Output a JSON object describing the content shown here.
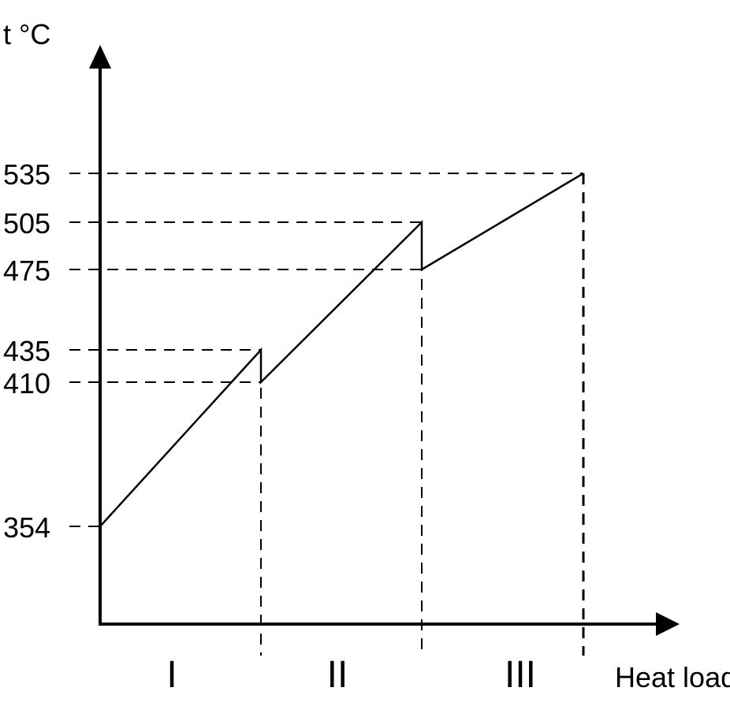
{
  "chart_data": {
    "type": "line",
    "ylabel": "t °C",
    "xlabel": "Heat load",
    "grid": false,
    "y_ticks": [
      535,
      505,
      475,
      435,
      410,
      354
    ],
    "regions": [
      "I",
      "II",
      "III"
    ],
    "series": [
      {
        "points": [
          {
            "region_boundary": 0,
            "t": 354
          },
          {
            "region_boundary": 1,
            "t": 435
          },
          {
            "region_boundary": 1,
            "t": 410
          },
          {
            "region_boundary": 2,
            "t": 505
          },
          {
            "region_boundary": 2,
            "t": 475
          },
          {
            "region_boundary": 3,
            "t": 535
          }
        ]
      }
    ],
    "colors": {
      "line": "#000000",
      "background": "#ffffff"
    }
  }
}
